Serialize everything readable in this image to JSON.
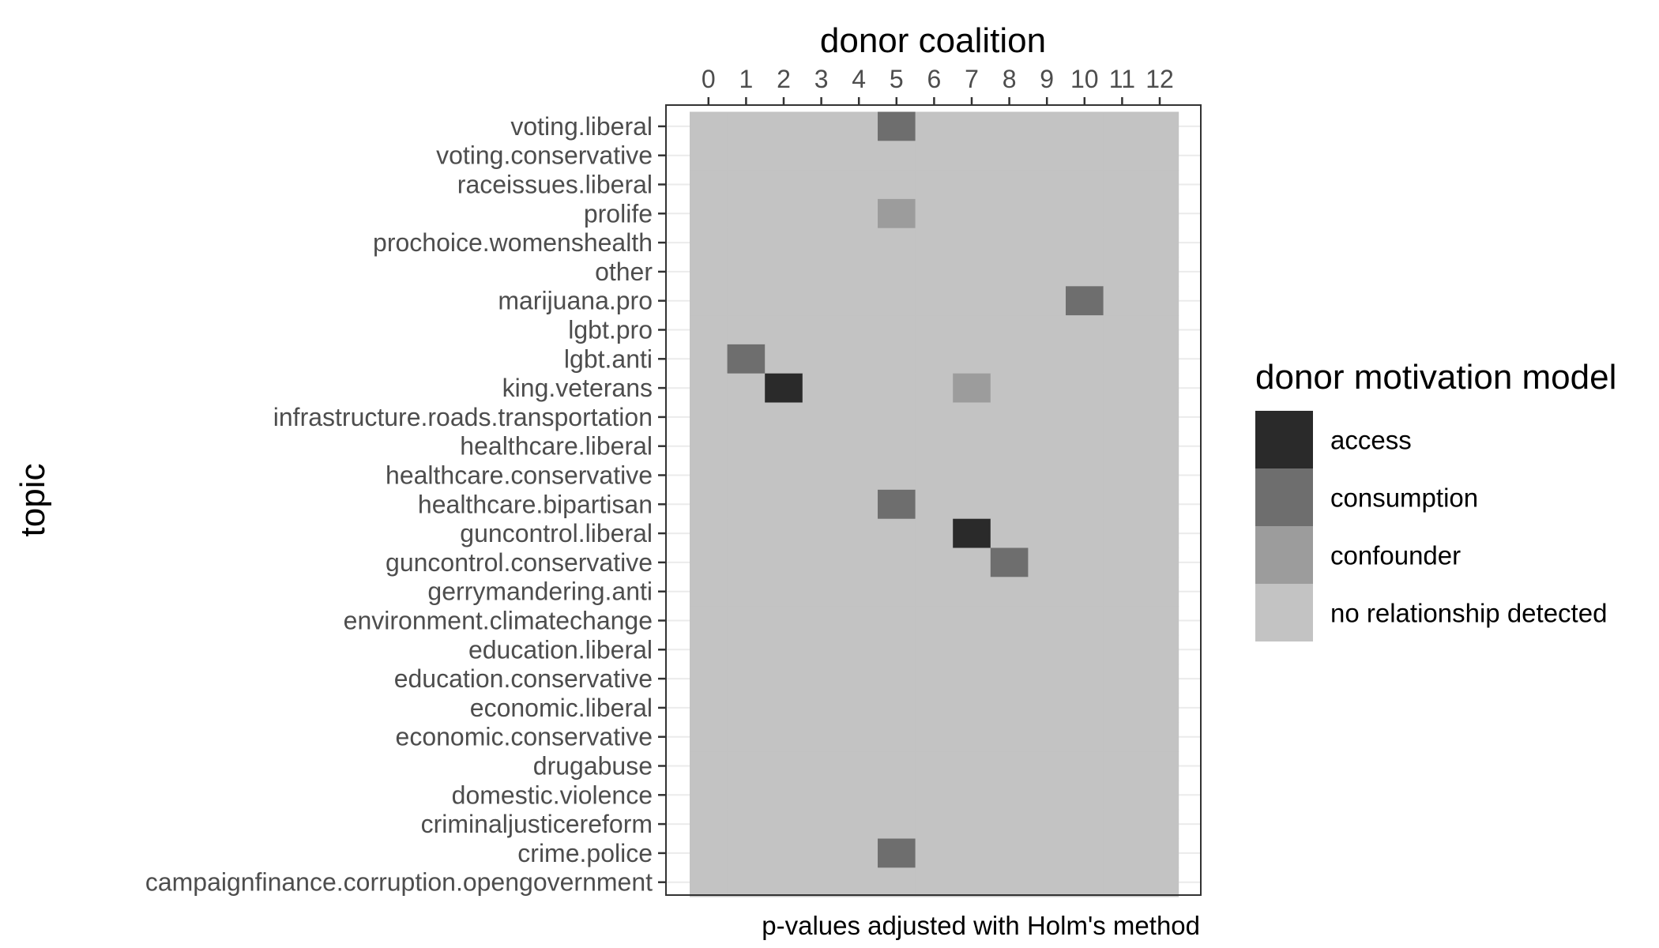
{
  "chart_data": {
    "type": "heatmap",
    "title": "donor coalition",
    "xlabel": "donor coalition",
    "ylabel": "topic",
    "caption": "p-values adjusted with Holm's method",
    "x_position": "top",
    "grid": true,
    "legend_position": "right",
    "x_categories": [
      "0",
      "1",
      "2",
      "3",
      "4",
      "5",
      "6",
      "7",
      "8",
      "9",
      "10",
      "11",
      "12"
    ],
    "y_categories": [
      "voting.liberal",
      "voting.conservative",
      "raceissues.liberal",
      "prolife",
      "prochoice.womenshealth",
      "other",
      "marijuana.pro",
      "lgbt.pro",
      "lgbt.anti",
      "king.veterans",
      "infrastructure.roads.transportation",
      "healthcare.liberal",
      "healthcare.conservative",
      "healthcare.bipartisan",
      "guncontrol.liberal",
      "guncontrol.conservative",
      "gerrymandering.anti",
      "environment.climatechange",
      "education.liberal",
      "education.conservative",
      "economic.liberal",
      "economic.conservative",
      "drugabuse",
      "domestic.violence",
      "criminaljusticereform",
      "crime.police",
      "campaignfinance.corruption.opengovernment"
    ],
    "default_value": "no relationship detected",
    "cells": [
      {
        "topic": "voting.liberal",
        "coalition": "5",
        "value": "consumption"
      },
      {
        "topic": "prolife",
        "coalition": "5",
        "value": "confounder"
      },
      {
        "topic": "marijuana.pro",
        "coalition": "10",
        "value": "consumption"
      },
      {
        "topic": "lgbt.anti",
        "coalition": "1",
        "value": "consumption"
      },
      {
        "topic": "king.veterans",
        "coalition": "2",
        "value": "access"
      },
      {
        "topic": "king.veterans",
        "coalition": "7",
        "value": "confounder"
      },
      {
        "topic": "healthcare.bipartisan",
        "coalition": "5",
        "value": "consumption"
      },
      {
        "topic": "guncontrol.liberal",
        "coalition": "7",
        "value": "access"
      },
      {
        "topic": "guncontrol.conservative",
        "coalition": "8",
        "value": "consumption"
      },
      {
        "topic": "crime.police",
        "coalition": "5",
        "value": "consumption"
      }
    ],
    "legend": {
      "title": "donor motivation model",
      "entries": [
        {
          "label": "access",
          "color": "#2a2a2a"
        },
        {
          "label": "consumption",
          "color": "#6e6e6e"
        },
        {
          "label": "confounder",
          "color": "#9c9c9c"
        },
        {
          "label": "no relationship detected",
          "color": "#c3c3c3"
        }
      ]
    }
  }
}
